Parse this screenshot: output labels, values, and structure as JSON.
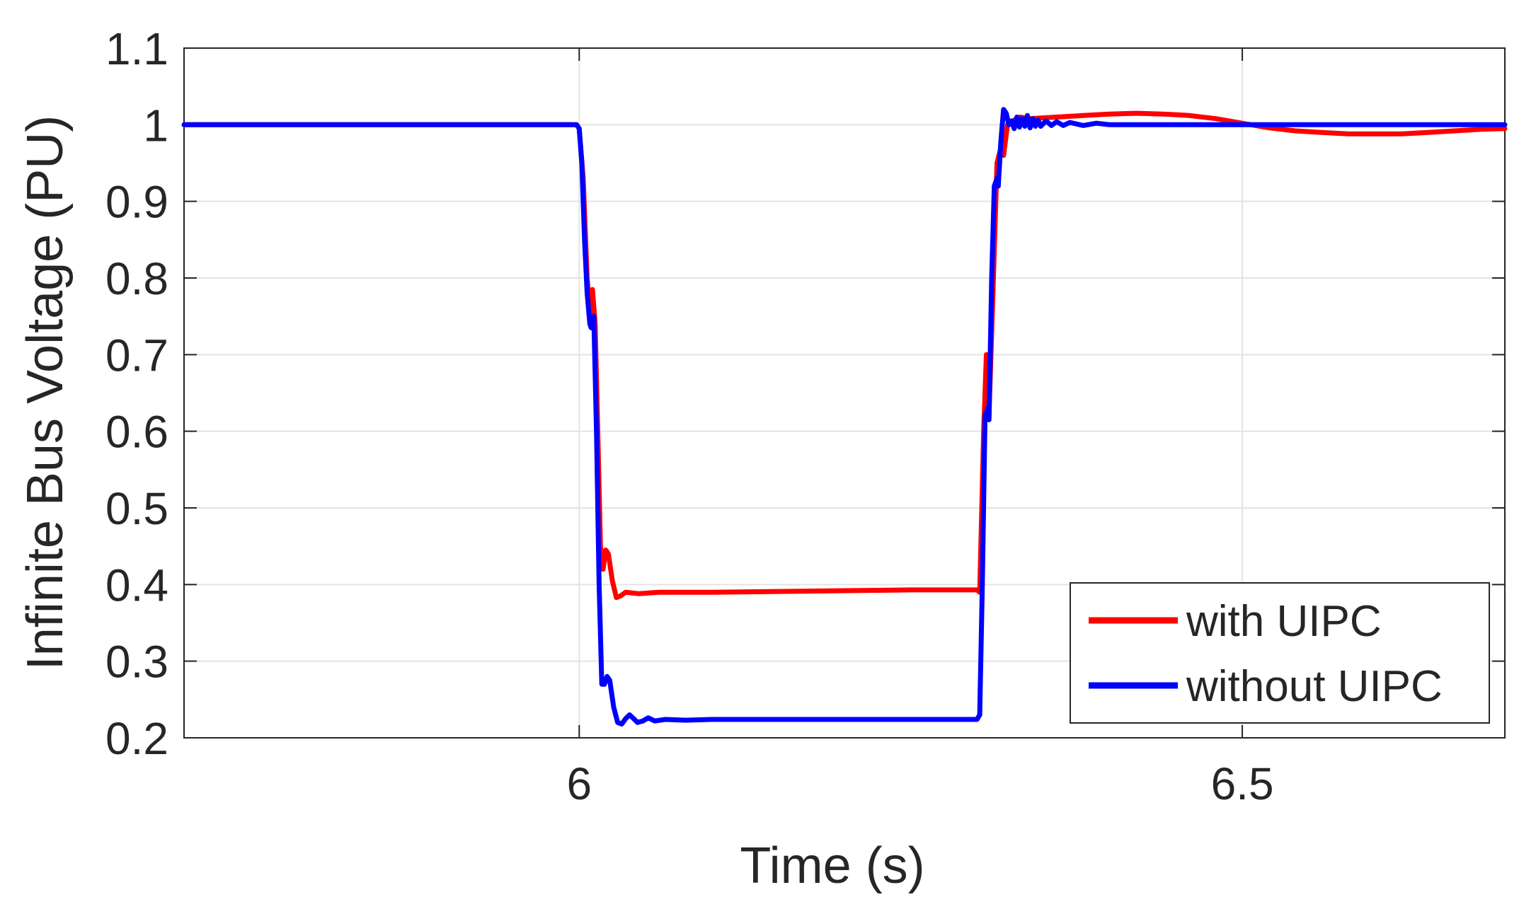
{
  "chart_data": {
    "type": "line",
    "title": "",
    "xlabel": "Time (s)",
    "ylabel": "Infinite Bus Voltage (PU)",
    "xlim": [
      5.702,
      6.698
    ],
    "ylim": [
      0.2,
      1.1
    ],
    "xticks": [
      6,
      6.5
    ],
    "xtick_labels": [
      "6",
      "6.5"
    ],
    "yticks": [
      0.2,
      0.3,
      0.4,
      0.5,
      0.6,
      0.7,
      0.8,
      0.9,
      1.0,
      1.1
    ],
    "ytick_labels": [
      "0.2",
      "0.3",
      "0.4",
      "0.5",
      "0.6",
      "0.7",
      "0.8",
      "0.9",
      "1",
      "1.1"
    ],
    "grid": true,
    "legend_position": "bottom-right",
    "series": [
      {
        "name": "with UIPC",
        "color": "#ff0000",
        "points": [
          [
            5.702,
            1.0
          ],
          [
            5.998,
            1.0
          ],
          [
            6.0,
            0.995
          ],
          [
            6.003,
            0.93
          ],
          [
            6.006,
            0.8
          ],
          [
            6.009,
            0.74
          ],
          [
            6.01,
            0.785
          ],
          [
            6.012,
            0.74
          ],
          [
            6.014,
            0.6
          ],
          [
            6.016,
            0.45
          ],
          [
            6.018,
            0.42
          ],
          [
            6.02,
            0.445
          ],
          [
            6.022,
            0.44
          ],
          [
            6.025,
            0.405
          ],
          [
            6.028,
            0.383
          ],
          [
            6.031,
            0.385
          ],
          [
            6.035,
            0.39
          ],
          [
            6.045,
            0.388
          ],
          [
            6.06,
            0.39
          ],
          [
            6.1,
            0.39
          ],
          [
            6.15,
            0.391
          ],
          [
            6.2,
            0.392
          ],
          [
            6.25,
            0.393
          ],
          [
            6.3,
            0.393
          ],
          [
            6.302,
            0.39
          ],
          [
            6.305,
            0.6
          ],
          [
            6.307,
            0.7
          ],
          [
            6.309,
            0.62
          ],
          [
            6.312,
            0.78
          ],
          [
            6.315,
            0.95
          ],
          [
            6.318,
            0.97
          ],
          [
            6.32,
            0.96
          ],
          [
            6.323,
            1.0
          ],
          [
            6.327,
            1.005
          ],
          [
            6.332,
            1.01
          ],
          [
            6.34,
            1.008
          ],
          [
            6.36,
            1.01
          ],
          [
            6.38,
            1.012
          ],
          [
            6.4,
            1.014
          ],
          [
            6.42,
            1.015
          ],
          [
            6.44,
            1.014
          ],
          [
            6.46,
            1.012
          ],
          [
            6.48,
            1.008
          ],
          [
            6.5,
            1.002
          ],
          [
            6.52,
            0.996
          ],
          [
            6.54,
            0.992
          ],
          [
            6.56,
            0.99
          ],
          [
            6.58,
            0.988
          ],
          [
            6.6,
            0.988
          ],
          [
            6.62,
            0.988
          ],
          [
            6.64,
            0.99
          ],
          [
            6.66,
            0.992
          ],
          [
            6.68,
            0.994
          ],
          [
            6.698,
            0.995
          ]
        ]
      },
      {
        "name": "without UIPC",
        "color": "#0000ff",
        "points": [
          [
            5.702,
            1.0
          ],
          [
            5.998,
            1.0
          ],
          [
            6.0,
            0.995
          ],
          [
            6.002,
            0.95
          ],
          [
            6.004,
            0.85
          ],
          [
            6.006,
            0.78
          ],
          [
            6.008,
            0.74
          ],
          [
            6.009,
            0.735
          ],
          [
            6.011,
            0.75
          ],
          [
            6.013,
            0.6
          ],
          [
            6.015,
            0.4
          ],
          [
            6.017,
            0.27
          ],
          [
            6.019,
            0.27
          ],
          [
            6.021,
            0.28
          ],
          [
            6.023,
            0.275
          ],
          [
            6.026,
            0.24
          ],
          [
            6.029,
            0.22
          ],
          [
            6.032,
            0.218
          ],
          [
            6.035,
            0.225
          ],
          [
            6.038,
            0.23
          ],
          [
            6.041,
            0.225
          ],
          [
            6.044,
            0.22
          ],
          [
            6.048,
            0.222
          ],
          [
            6.052,
            0.226
          ],
          [
            6.057,
            0.222
          ],
          [
            6.065,
            0.224
          ],
          [
            6.08,
            0.223
          ],
          [
            6.1,
            0.224
          ],
          [
            6.2,
            0.224
          ],
          [
            6.3,
            0.224
          ],
          [
            6.302,
            0.23
          ],
          [
            6.304,
            0.4
          ],
          [
            6.306,
            0.62
          ],
          [
            6.308,
            0.63
          ],
          [
            6.309,
            0.615
          ],
          [
            6.311,
            0.8
          ],
          [
            6.313,
            0.92
          ],
          [
            6.315,
            0.93
          ],
          [
            6.316,
            0.92
          ],
          [
            6.318,
            0.98
          ],
          [
            6.32,
            1.02
          ],
          [
            6.322,
            1.015
          ],
          [
            6.324,
            1.0
          ],
          [
            6.326,
            1.005
          ],
          [
            6.328,
            0.995
          ],
          [
            6.33,
            1.01
          ],
          [
            6.332,
            0.997
          ],
          [
            6.334,
            1.008
          ],
          [
            6.336,
            0.998
          ],
          [
            6.338,
            1.012
          ],
          [
            6.34,
            0.996
          ],
          [
            6.342,
            1.008
          ],
          [
            6.344,
            0.998
          ],
          [
            6.346,
            1.006
          ],
          [
            6.348,
            0.998
          ],
          [
            6.352,
            1.005
          ],
          [
            6.356,
            0.999
          ],
          [
            6.36,
            1.004
          ],
          [
            6.365,
            0.999
          ],
          [
            6.37,
            1.003
          ],
          [
            6.38,
            0.999
          ],
          [
            6.39,
            1.002
          ],
          [
            6.4,
            1.0
          ],
          [
            6.45,
            1.0
          ],
          [
            6.5,
            1.0
          ],
          [
            6.6,
            1.0
          ],
          [
            6.698,
            1.0
          ]
        ]
      }
    ]
  }
}
